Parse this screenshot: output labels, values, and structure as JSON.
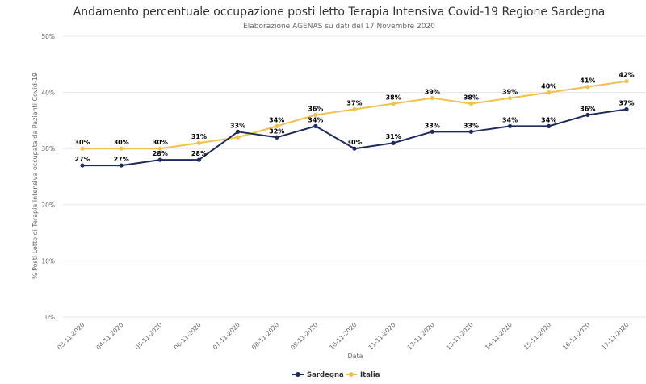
{
  "chart_data": {
    "type": "line",
    "title": "Andamento percentuale occupazione posti letto Terapia Intensiva Covid-19 Regione Sardegna",
    "subtitle": "Elaborazione AGENAS su dati del 17 Novembre 2020",
    "xlabel": "Data",
    "ylabel": "% Posti Letto di Terapia Intensiva occupata da Pazienti Covid-19",
    "ylim": [
      0,
      50
    ],
    "yticks": [
      0,
      10,
      20,
      30,
      40,
      50
    ],
    "ytick_labels": [
      "0%",
      "10%",
      "20%",
      "30%",
      "40%",
      "50%"
    ],
    "grid": true,
    "legend_position": "bottom-center",
    "categories": [
      "03-11-2020",
      "04-11-2020",
      "05-11-2020",
      "06-11-2020",
      "07-11-2020",
      "08-11-2020",
      "09-11-2020",
      "10-11-2020",
      "11-11-2020",
      "12-11-2020",
      "13-11-2020",
      "14-11-2020",
      "15-11-2020",
      "16-11-2020",
      "17-11-2020"
    ],
    "series": [
      {
        "name": "Sardegna",
        "color": "#1f2a5e",
        "values": [
          27,
          27,
          28,
          28,
          33,
          32,
          34,
          30,
          31,
          33,
          33,
          34,
          34,
          36,
          37
        ],
        "labels": [
          "27%",
          "27%",
          "28%",
          "28%",
          "33%",
          "32%",
          "34%",
          "30%",
          "31%",
          "33%",
          "33%",
          "34%",
          "34%",
          "36%",
          "37%"
        ]
      },
      {
        "name": "Italia",
        "color": "#f2c14a",
        "values": [
          30,
          30,
          30,
          31,
          32,
          34,
          36,
          37,
          38,
          39,
          38,
          39,
          40,
          41,
          42
        ],
        "labels": [
          "30%",
          "30%",
          "30%",
          "31%",
          "",
          "34%",
          "36%",
          "37%",
          "38%",
          "39%",
          "38%",
          "39%",
          "40%",
          "41%",
          "42%"
        ]
      }
    ]
  }
}
